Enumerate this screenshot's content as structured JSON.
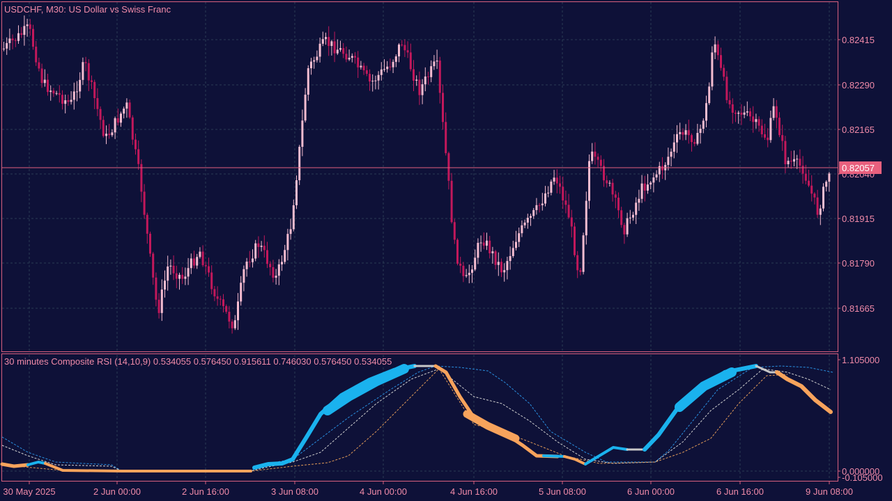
{
  "window": {
    "title": "USDCHF, M30:  US Dollar vs Swiss Franc"
  },
  "main_chart": {
    "price_ticks": [
      "0.82415",
      "0.82290",
      "0.82165",
      "0.82040",
      "0.81915",
      "0.81790",
      "0.81665"
    ],
    "current_price": "0.82057",
    "colors": {
      "bull": "#f4bcd0",
      "bear": "#c2185b",
      "grid": "#2b3a55",
      "frame": "#d9607e",
      "price_line": "#e0607e"
    }
  },
  "indicator": {
    "label": "30 minutes Composite RSI (14,10,9) 0.534055 0.576450 0.915611 0.746030 0.576450 0.534055",
    "scale_ticks": [
      "1.105000",
      "0.000000",
      "-0.105000"
    ],
    "colors": {
      "up": "#1ab2ee",
      "down": "#f7a35c",
      "neutral": "#c8c8c8",
      "dotted_blue": "#2a8fe0",
      "dotted_white": "#d0d0d0",
      "dotted_orange": "#e09a58"
    }
  },
  "time_axis": {
    "labels": [
      "30 May 2025",
      "2 Jun 00:00",
      "2 Jun 16:00",
      "3 Jun 08:00",
      "4 Jun 00:00",
      "4 Jun 16:00",
      "5 Jun 08:00",
      "6 Jun 00:00",
      "6 Jun 16:00",
      "9 Jun 08:00"
    ]
  }
}
